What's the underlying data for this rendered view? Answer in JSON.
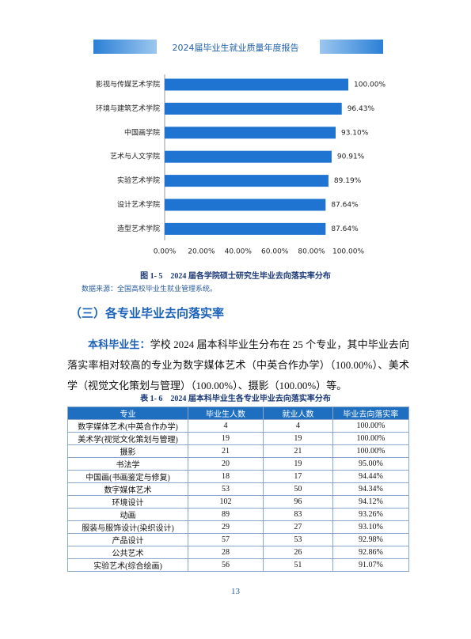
{
  "header": {
    "title": "2024届毕业生就业质量年度报告"
  },
  "chart_data": {
    "type": "bar",
    "orientation": "horizontal",
    "color": "#1f74d2",
    "categories": [
      "影视与传媒艺术学院",
      "环境与建筑艺术学院",
      "中国画学院",
      "艺术与人文学院",
      "实验艺术学院",
      "设计艺术学院",
      "造型艺术学院"
    ],
    "values": [
      100.0,
      96.43,
      93.1,
      90.91,
      89.19,
      87.64,
      87.64
    ],
    "value_labels": [
      "100.00%",
      "96.43%",
      "93.10%",
      "90.91%",
      "89.19%",
      "87.64%",
      "87.64%"
    ],
    "xlim": [
      0,
      100
    ],
    "xticks": [
      {
        "value": 0,
        "label": "0.00%"
      },
      {
        "value": 20,
        "label": "20.00%"
      },
      {
        "value": 40,
        "label": "40.00%"
      },
      {
        "value": 60,
        "label": "60.00%"
      },
      {
        "value": 80,
        "label": "80.00%"
      },
      {
        "value": 100,
        "label": "100.00%"
      }
    ]
  },
  "figure": {
    "caption": "图 1- 5　2024 届各学院硕士研究生毕业去向落实率分布",
    "source": "数据来源：全国高校毕业生就业管理系统。"
  },
  "section": {
    "heading": "（三）各专业毕业去向落实率"
  },
  "paragraph": {
    "lead": "本科毕业生：",
    "body": "学校 2024 届本科毕业生分布在 25 个专业，其中毕业去向落实率相对较高的专业为数字媒体艺术（中英合作办学）（100.00%）、美术学（视觉文化策划与管理）（100.00%）、摄影（100.00%）等。"
  },
  "table": {
    "title": "表 1- 6　2024 届本科毕业生各专业毕业去向落实率分布",
    "header": [
      "专业",
      "毕业生人数",
      "就业人数",
      "毕业去向落实率"
    ],
    "rows": [
      [
        "数字媒体艺术(中英合作办学)",
        4,
        4,
        "100.00%"
      ],
      [
        "美术学(视觉文化策划与管理)",
        19,
        19,
        "100.00%"
      ],
      [
        "摄影",
        21,
        21,
        "100.00%"
      ],
      [
        "书法学",
        20,
        19,
        "95.00%"
      ],
      [
        "中国画(书画鉴定与修复)",
        18,
        17,
        "94.44%"
      ],
      [
        "数字媒体艺术",
        53,
        50,
        "94.34%"
      ],
      [
        "环境设计",
        102,
        96,
        "94.12%"
      ],
      [
        "动画",
        89,
        83,
        "93.26%"
      ],
      [
        "服装与服饰设计(染织设计)",
        29,
        27,
        "93.10%"
      ],
      [
        "产品设计",
        57,
        53,
        "92.98%"
      ],
      [
        "公共艺术",
        28,
        26,
        "92.86%"
      ],
      [
        "实验艺术(综合绘画)",
        56,
        51,
        "91.07%"
      ]
    ]
  },
  "footer": {
    "page": "13"
  }
}
